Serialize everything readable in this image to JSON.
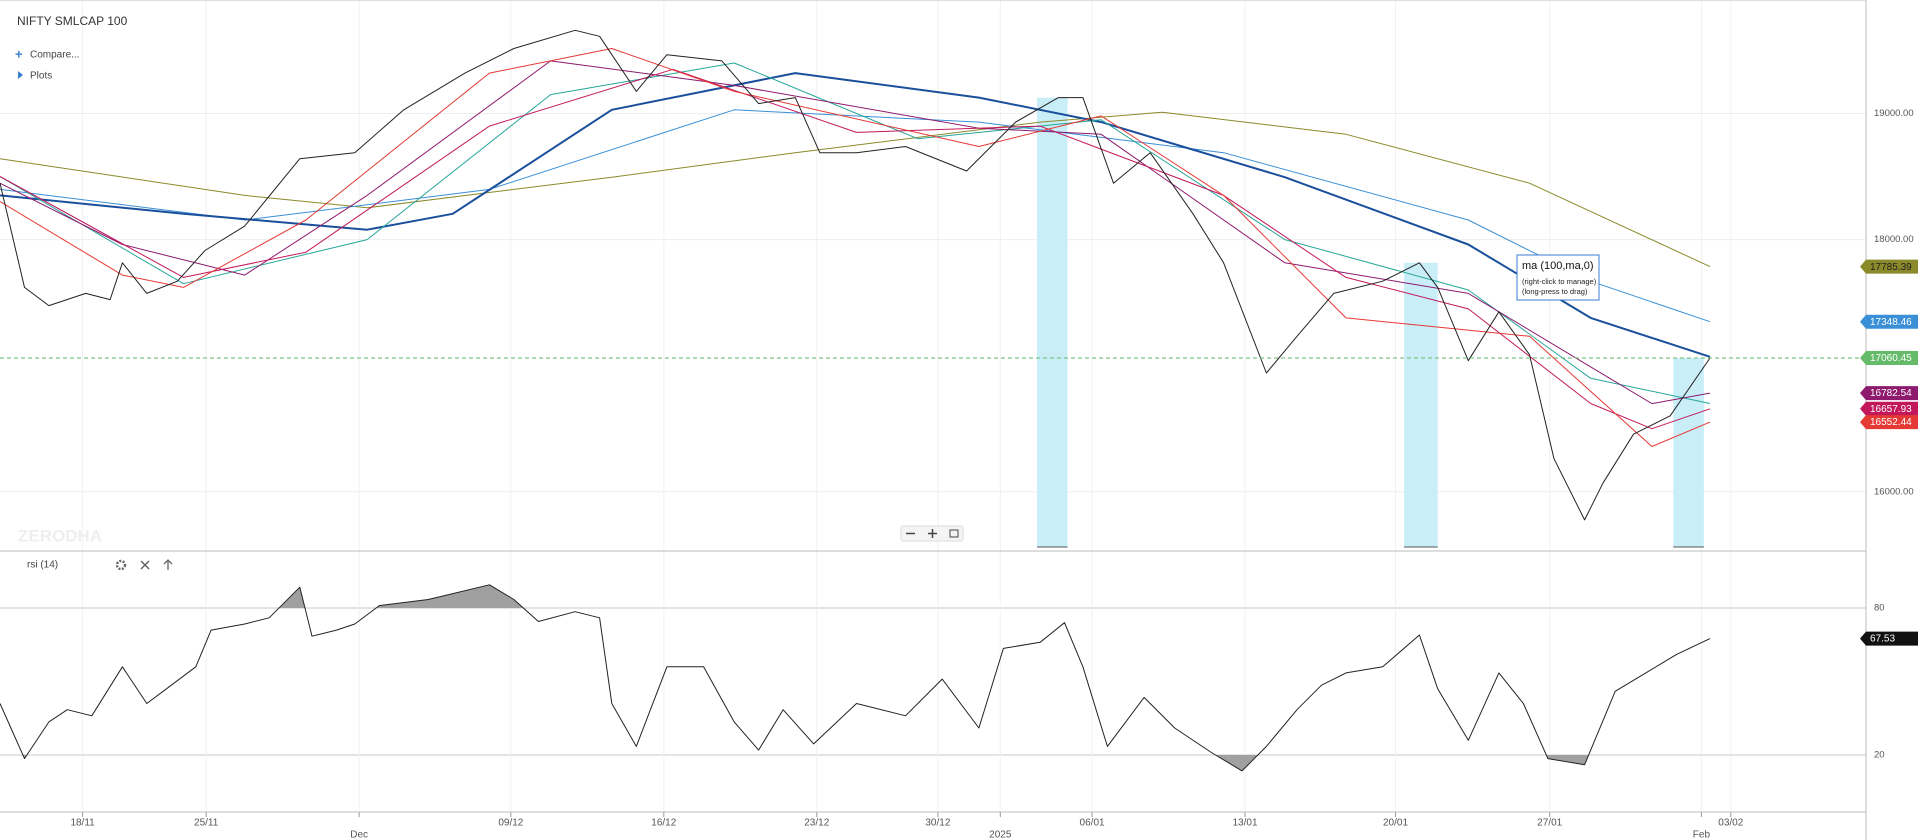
{
  "ui": {
    "compare": "Compare...",
    "plots": "Plots",
    "watermark": "ZERODHA",
    "tooltip": {
      "title": "ma (100,ma,0)",
      "lines": [
        "(right-click to manage)",
        "(long-press to drag)"
      ]
    }
  },
  "chart_data": [
    {
      "type": "line",
      "title": "NIFTY SMLCAP 100",
      "xlim": [
        -2.7,
        58.3
      ],
      "ylim": [
        15530,
        19900
      ],
      "yticks": [
        {
          "value": 16000,
          "label": "16000.00"
        },
        {
          "value": 18000,
          "label": "18000.00"
        },
        {
          "value": 19000,
          "label": "19000.00"
        }
      ],
      "grid": true,
      "highlights": {
        "color": "#c9eef8",
        "ranges": [
          [
            31.2,
            32.2
          ],
          [
            43.2,
            44.3
          ],
          [
            52.0,
            53.0
          ]
        ]
      },
      "series": [
        {
          "color": "#8a8a2a",
          "width": 1,
          "badge": true,
          "badge_text_color": "#222",
          "x": [
            -2.7,
            5.3,
            9.3,
            17.3,
            23.3,
            31.3,
            35.3,
            41.3,
            47.3,
            53.2
          ],
          "values": [
            18641,
            18350,
            18252,
            18495,
            18689,
            18932,
            19010,
            18835,
            18447,
            17785.39
          ]
        },
        {
          "color": "#3a8fd6",
          "width": 1,
          "badge": true,
          "x": [
            -2.7,
            5.3,
            13.3,
            21.3,
            29.3,
            37.3,
            45.3,
            49.3,
            53.2
          ],
          "values": [
            18398,
            18155,
            18398,
            19029,
            18932,
            18689,
            18155,
            17670,
            17348.46
          ]
        },
        {
          "color": "#1a4f9c",
          "width": 2,
          "x": [
            -2.7,
            3.3,
            9.3,
            12.1,
            17.3,
            23.3,
            29.3,
            33.3,
            39.3,
            45.3,
            49.3,
            53.2
          ],
          "values": [
            18350,
            18204,
            18078,
            18204,
            19029,
            19320,
            19126,
            18932,
            18495,
            17961,
            17379,
            17070
          ]
        },
        {
          "color": "#26a69a",
          "width": 1,
          "x": [
            -2.7,
            3.3,
            9.3,
            15.3,
            21.3,
            27.3,
            33.3,
            39.3,
            45.3,
            49.3,
            53.2
          ],
          "values": [
            18500,
            17650,
            18000,
            19150,
            19400,
            18800,
            18950,
            18000,
            17600,
            16900,
            16700
          ]
        },
        {
          "color": "#8e1a6e",
          "width": 1,
          "badge": true,
          "x": [
            -2.7,
            1.3,
            5.3,
            9.3,
            15.3,
            21.3,
            29.3,
            33.3,
            39.3,
            45.3,
            49.3,
            51.3,
            53.2
          ],
          "values": [
            18447,
            17961,
            17718,
            18350,
            19417,
            19223,
            18883,
            18835,
            17816,
            17573,
            16990,
            16699,
            16782.54
          ]
        },
        {
          "color": "#c2185b",
          "width": 1,
          "badge": true,
          "x": [
            -2.7,
            3.3,
            7.3,
            13.3,
            19.3,
            25.3,
            31.3,
            37.3,
            41.3,
            45.3,
            49.3,
            51.3,
            53.2
          ],
          "values": [
            18500,
            17700,
            17900,
            18900,
            19350,
            18850,
            18900,
            18350,
            17700,
            17450,
            16700,
            16500,
            16657.93
          ]
        },
        {
          "color": "#e53935",
          "width": 1,
          "badge": true,
          "x": [
            -2.7,
            1.3,
            3.3,
            7.3,
            13.3,
            17.3,
            21.3,
            29.3,
            33.3,
            37.3,
            41.3,
            43.3,
            47.3,
            49.3,
            51.3,
            53.2
          ],
          "values": [
            18301,
            17718,
            17621,
            18155,
            19320,
            19515,
            19175,
            18738,
            18981,
            18350,
            17379,
            17330,
            17233,
            16796,
            16359,
            16552.44
          ]
        },
        {
          "color": "#222222",
          "width": 1,
          "badge": true,
          "badge_color": "#66bb6a",
          "last_line": true,
          "x": [
            -2.7,
            -1.9,
            -1.1,
            0.1,
            0.9,
            1.3,
            2.1,
            3.1,
            4.0,
            5.3,
            7.1,
            8.9,
            10.5,
            12.5,
            14.1,
            16.1,
            16.9,
            18.1,
            19.1,
            20.9,
            22.1,
            23.3,
            24.1,
            25.3,
            26.9,
            28.9,
            30.5,
            31.9,
            32.7,
            33.7,
            34.9,
            36.3,
            37.3,
            38.7,
            39.7,
            40.9,
            42.5,
            43.7,
            44.3,
            45.3,
            46.3,
            47.3,
            48.1,
            49.1,
            49.7,
            50.7,
            51.9,
            53.2
          ],
          "values": [
            18447,
            17621,
            17476,
            17573,
            17524,
            17816,
            17573,
            17670,
            17913,
            18107,
            18641,
            18689,
            19029,
            19320,
            19515,
            19660,
            19612,
            19175,
            19466,
            19417,
            19078,
            19126,
            18689,
            18689,
            18738,
            18544,
            18932,
            19126,
            19126,
            18447,
            18689,
            18204,
            17816,
            16942,
            17233,
            17573,
            17670,
            17816,
            17621,
            17039,
            17427,
            17087,
            16262,
            15777,
            16068,
            16456,
            16602,
            17060.45
          ]
        }
      ]
    },
    {
      "type": "line",
      "title": "rsi (14)",
      "xlim": [
        -2.7,
        58.3
      ],
      "ylim": [
        -3.3,
        103.3
      ],
      "yticks": [
        80,
        20
      ],
      "threshold_fill": "#a0a0a0",
      "xticks": [
        {
          "value": 0,
          "label": "18/11"
        },
        {
          "value": 4.04,
          "label": "25/11"
        },
        {
          "value": 14,
          "label": "09/12"
        },
        {
          "value": 19,
          "label": "16/12"
        },
        {
          "value": 24,
          "label": "23/12"
        },
        {
          "value": 27.96,
          "label": "30/12"
        },
        {
          "value": 33,
          "label": "06/01"
        },
        {
          "value": 38,
          "label": "13/01"
        },
        {
          "value": 42.92,
          "label": "20/01"
        },
        {
          "value": 47.96,
          "label": "27/01"
        },
        {
          "value": 53.88,
          "label": "03/02"
        }
      ],
      "xmonthticks": [
        {
          "value": 9.04,
          "label": "Dec"
        },
        {
          "value": 30,
          "label": "2025"
        },
        {
          "value": 52.92,
          "label": "Feb"
        }
      ],
      "series": [
        {
          "color": "#222222",
          "width": 1,
          "badge": true,
          "badge_color": "#111111",
          "x": [
            -2.7,
            -1.9,
            -1.1,
            -0.5,
            0.3,
            1.3,
            2.1,
            2.9,
            3.7,
            4.2,
            5.3,
            6.1,
            7.1,
            7.5,
            8.3,
            8.9,
            9.7,
            11.3,
            13.3,
            14.1,
            14.9,
            16.1,
            16.9,
            17.3,
            18.1,
            19.1,
            20.3,
            21.3,
            22.1,
            22.9,
            23.9,
            25.3,
            26.9,
            28.1,
            29.3,
            30.1,
            31.3,
            32.1,
            32.7,
            33.5,
            34.7,
            35.7,
            36.9,
            37.9,
            38.7,
            39.7,
            40.5,
            41.3,
            42.5,
            43.7,
            44.3,
            45.3,
            46.3,
            47.1,
            47.9,
            49.1,
            50.1,
            51.1,
            52.1,
            53.2
          ],
          "values": [
            41,
            18.5,
            33.5,
            38.5,
            36,
            56,
            41,
            48.5,
            56,
            71,
            73.5,
            76,
            88.5,
            68.5,
            71,
            73.5,
            81,
            83.5,
            89.5,
            83.5,
            74.5,
            78.5,
            76,
            41,
            23.5,
            56,
            56,
            33.5,
            22,
            38.5,
            24.5,
            41,
            36,
            51,
            31,
            63.5,
            66,
            74,
            56,
            23.5,
            43.5,
            31,
            21,
            13.5,
            23.5,
            38.5,
            48.5,
            53.5,
            56,
            69,
            47,
            26,
            53.5,
            41,
            18.5,
            16,
            46,
            53.5,
            61,
            67.53
          ]
        }
      ]
    }
  ]
}
